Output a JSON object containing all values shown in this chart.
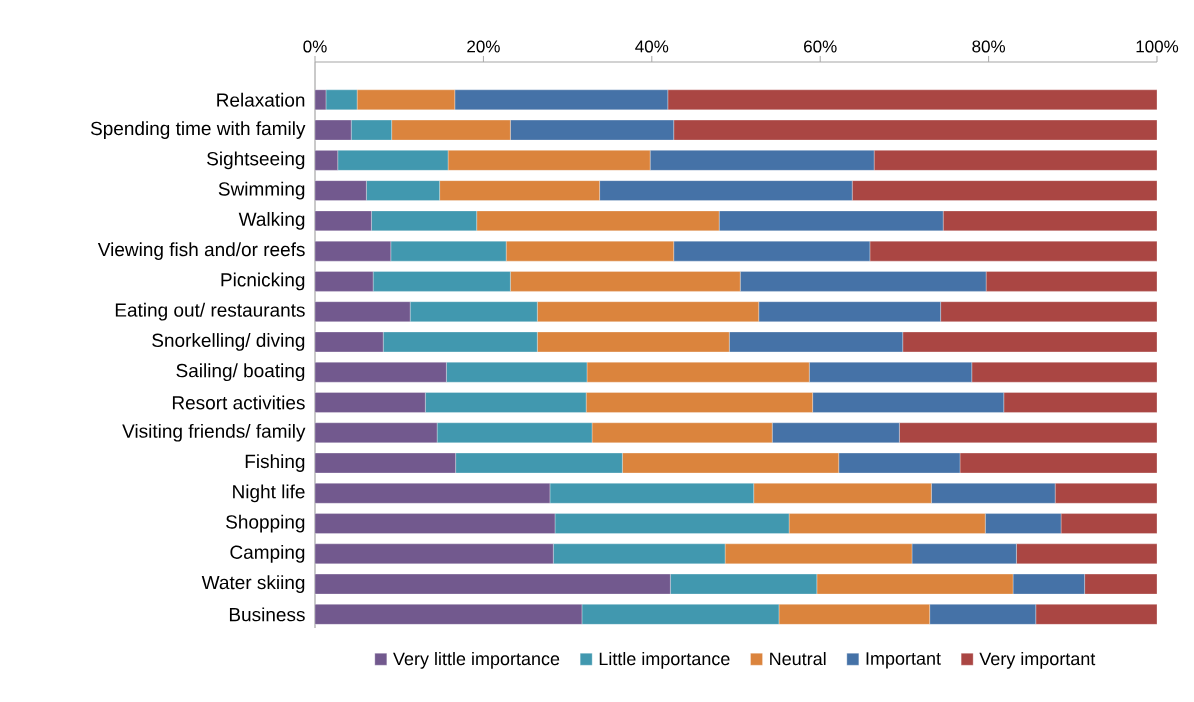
{
  "chart_data": {
    "type": "bar",
    "orientation": "horizontal",
    "stacked": true,
    "categories": [
      "Relaxation",
      "Spending time with family",
      "Sightseeing",
      "Swimming",
      "Walking",
      "Viewing fish and/or reefs",
      "Picnicking",
      "Eating out/ restaurants",
      "Snorkelling/ diving",
      "Sailing/ boating",
      "Resort activities",
      "Visiting friends/ family",
      "Fishing",
      "Night life",
      "Shopping",
      "Camping",
      "Water skiing",
      "Business"
    ],
    "series": [
      {
        "name": "Very little  importance",
        "color": "#72598e",
        "values": [
          1.3,
          4.3,
          2.7,
          6.1,
          6.7,
          9.0,
          6.9,
          11.3,
          8.1,
          15.6,
          13.1,
          14.5,
          16.7,
          27.9,
          28.5,
          28.3,
          42.2,
          31.7
        ]
      },
      {
        "name": "Little importance",
        "color": "#4198af",
        "values": [
          3.7,
          4.8,
          13.1,
          8.7,
          12.5,
          13.7,
          16.3,
          15.1,
          18.3,
          16.7,
          19.1,
          18.4,
          19.8,
          24.2,
          27.8,
          20.4,
          17.4,
          23.4
        ]
      },
      {
        "name": "Neutral",
        "color": "#db843d",
        "values": [
          11.6,
          14.1,
          24.0,
          19.0,
          28.8,
          19.9,
          27.3,
          26.3,
          22.8,
          26.4,
          26.9,
          21.4,
          25.7,
          21.1,
          23.3,
          22.2,
          23.3,
          17.9
        ]
      },
      {
        "name": "Important",
        "color": "#4572a7",
        "values": [
          25.3,
          19.4,
          26.6,
          30.0,
          26.6,
          23.3,
          29.2,
          21.6,
          20.6,
          19.3,
          22.7,
          15.1,
          14.4,
          14.7,
          9.0,
          12.4,
          8.5,
          12.6
        ]
      },
      {
        "name": "Very important",
        "color": "#aa4643",
        "values": [
          58.1,
          57.4,
          33.6,
          36.2,
          25.4,
          34.1,
          20.3,
          25.7,
          30.2,
          22.0,
          18.2,
          30.6,
          23.4,
          12.1,
          11.4,
          16.7,
          8.6,
          14.4
        ]
      }
    ],
    "xlim": [
      0,
      100
    ],
    "xticks": [
      {
        "value": 0,
        "label": "0%"
      },
      {
        "value": 20,
        "label": "20%"
      },
      {
        "value": 40,
        "label": "40%"
      },
      {
        "value": 60,
        "label": "60%"
      },
      {
        "value": 80,
        "label": "80%"
      },
      {
        "value": 100,
        "label": "100%"
      }
    ],
    "legend": "bottom"
  }
}
